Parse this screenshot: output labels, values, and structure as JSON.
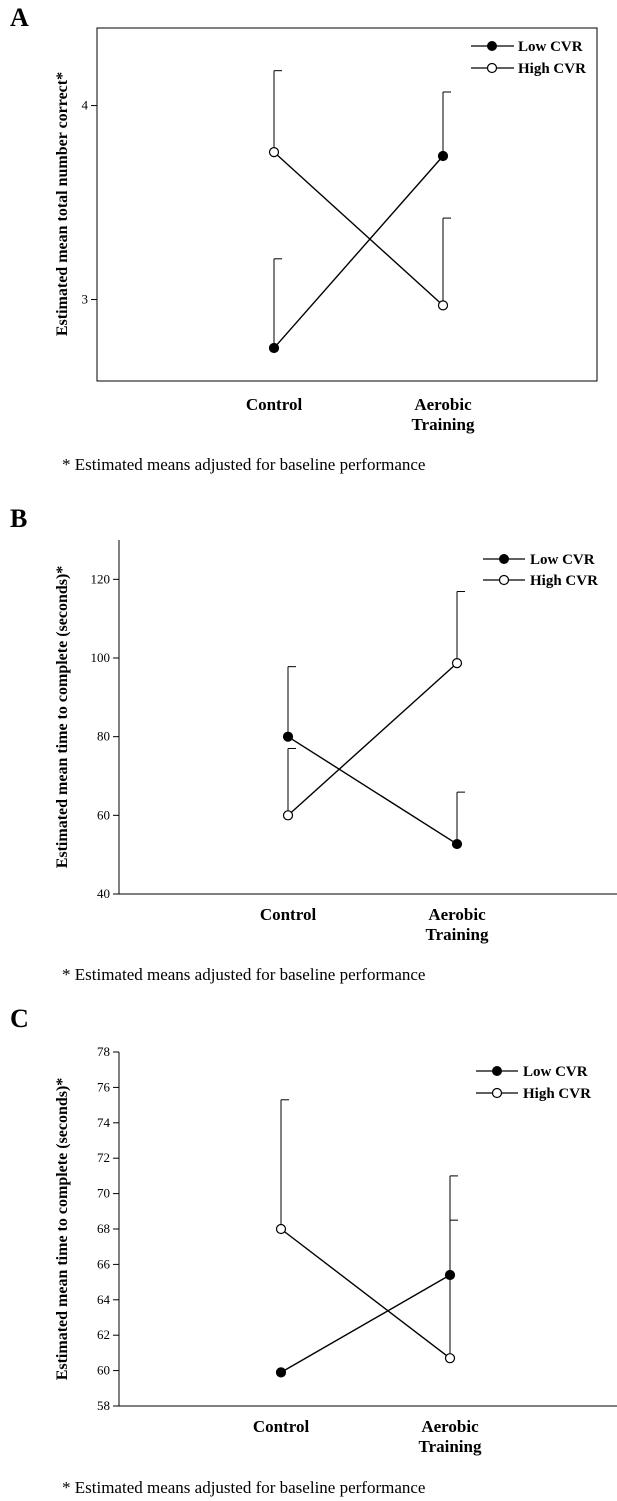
{
  "chart_data": [
    {
      "type": "line",
      "panel_label": "A",
      "title": "",
      "xlabel": "",
      "ylabel": "Estimated mean total number correct*",
      "categories": [
        "Control",
        "Aerobic Training"
      ],
      "category_labels": [
        [
          "Control"
        ],
        [
          "Aerobic",
          "Training"
        ]
      ],
      "ylim": [
        2.58,
        4.4
      ],
      "yticks": [
        3,
        4
      ],
      "series": [
        {
          "name": "Low CVR",
          "marker": "filled",
          "values": [
            2.75,
            3.74
          ],
          "error_upper": [
            3.21,
            4.07
          ]
        },
        {
          "name": "High CVR",
          "marker": "open",
          "values": [
            3.76,
            2.97
          ],
          "error_upper": [
            4.18,
            3.42
          ]
        }
      ],
      "legend_position": "top-right",
      "grid": false,
      "footnote": "* Estimated means adjusted for baseline performance"
    },
    {
      "type": "line",
      "panel_label": "B",
      "title": "",
      "xlabel": "",
      "ylabel": "Estimated mean time to complete (seconds)*",
      "categories": [
        "Control",
        "Aerobic Training"
      ],
      "category_labels": [
        [
          "Control"
        ],
        [
          "Aerobic",
          "Training"
        ]
      ],
      "ylim": [
        40,
        130
      ],
      "yticks": [
        40,
        60,
        80,
        100,
        120
      ],
      "series": [
        {
          "name": "Low CVR",
          "marker": "filled",
          "values": [
            80,
            52.7
          ],
          "error_upper": [
            97.8,
            65.9
          ]
        },
        {
          "name": "High CVR",
          "marker": "open",
          "values": [
            60,
            98.7
          ],
          "error_upper": [
            77,
            116.9
          ]
        }
      ],
      "legend_position": "top-right",
      "grid": false,
      "footnote": "* Estimated means adjusted for baseline performance"
    },
    {
      "type": "line",
      "panel_label": "C",
      "title": "",
      "xlabel": "",
      "ylabel": "Estimated mean time to complete (seconds)*",
      "categories": [
        "Control",
        "Aerobic Training"
      ],
      "category_labels": [
        [
          "Control"
        ],
        [
          "Aerobic",
          "Training"
        ]
      ],
      "ylim": [
        58,
        78
      ],
      "yticks": [
        58,
        60,
        62,
        64,
        66,
        68,
        70,
        72,
        74,
        76,
        78
      ],
      "series": [
        {
          "name": "Low CVR",
          "marker": "filled",
          "values": [
            59.9,
            65.4
          ],
          "error_upper": [
            59.9,
            71.0
          ]
        },
        {
          "name": "High CVR",
          "marker": "open",
          "values": [
            68.0,
            60.7
          ],
          "error_upper": [
            75.3,
            68.5
          ]
        }
      ],
      "legend_position": "top-right",
      "grid": false,
      "footnote": "* Estimated means adjusted for baseline performance"
    }
  ]
}
